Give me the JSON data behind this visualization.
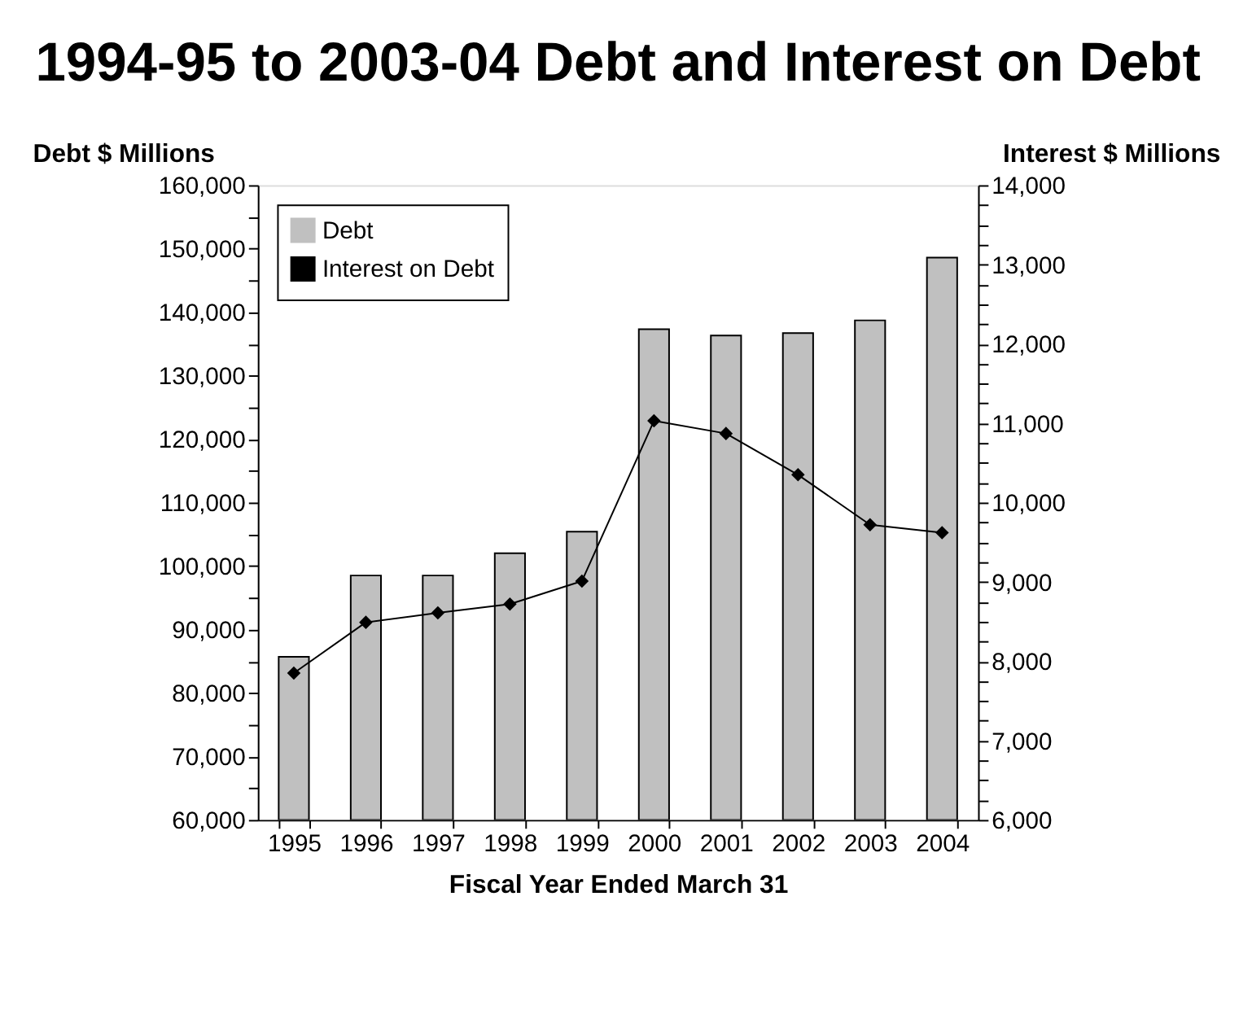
{
  "chart_data": {
    "type": "bar",
    "title": "1994-95 to 2003-04 Debt and Interest on Debt",
    "ylabel": "Debt $ Millions",
    "y2label": "Interest $ Millions",
    "xlabel": "Fiscal Year Ended March 31",
    "categories": [
      "1995",
      "1996",
      "1997",
      "1998",
      "1999",
      "2000",
      "2001",
      "2002",
      "2003",
      "2004"
    ],
    "series": [
      {
        "name": "Debt",
        "color": "#c0c0c0",
        "values": [
          85700,
          98500,
          98500,
          102000,
          105400,
          137300,
          136300,
          136700,
          138700,
          148600
        ]
      },
      {
        "name": "Interest on Debt",
        "type": "line",
        "axis": "y2",
        "color": "#000000",
        "marker": "diamond",
        "values": [
          7850,
          8490,
          8610,
          8720,
          9010,
          11030,
          10870,
          10350,
          9720,
          9620
        ]
      }
    ],
    "ylim": [
      60000,
      160000
    ],
    "yticks": [
      {
        "value": 60000,
        "label": "60,000"
      },
      {
        "value": 65000,
        "label": null
      },
      {
        "value": 70000,
        "label": "70,000"
      },
      {
        "value": 75000,
        "label": null
      },
      {
        "value": 80000,
        "label": "80,000"
      },
      {
        "value": 85000,
        "label": null
      },
      {
        "value": 90000,
        "label": "90,000"
      },
      {
        "value": 95000,
        "label": null
      },
      {
        "value": 100000,
        "label": "100,000"
      },
      {
        "value": 105000,
        "label": null
      },
      {
        "value": 110000,
        "label": "110,000"
      },
      {
        "value": 115000,
        "label": null
      },
      {
        "value": 120000,
        "label": "120,000"
      },
      {
        "value": 125000,
        "label": null
      },
      {
        "value": 130000,
        "label": "130,000"
      },
      {
        "value": 135000,
        "label": null
      },
      {
        "value": 140000,
        "label": "140,000"
      },
      {
        "value": 145000,
        "label": null
      },
      {
        "value": 150000,
        "label": "150,000"
      },
      {
        "value": 155000,
        "label": null
      },
      {
        "value": 160000,
        "label": "160,000"
      }
    ],
    "y2lim": [
      6000,
      14000
    ],
    "y2ticks": [
      {
        "value": 6000,
        "label": "6,000"
      },
      {
        "value": 6250,
        "label": null
      },
      {
        "value": 6500,
        "label": null
      },
      {
        "value": 6750,
        "label": null
      },
      {
        "value": 7000,
        "label": "7,000"
      },
      {
        "value": 7250,
        "label": null
      },
      {
        "value": 7500,
        "label": null
      },
      {
        "value": 7750,
        "label": null
      },
      {
        "value": 8000,
        "label": "8,000"
      },
      {
        "value": 8250,
        "label": null
      },
      {
        "value": 8500,
        "label": null
      },
      {
        "value": 8750,
        "label": null
      },
      {
        "value": 9000,
        "label": "9,000"
      },
      {
        "value": 9250,
        "label": null
      },
      {
        "value": 9500,
        "label": null
      },
      {
        "value": 9750,
        "label": null
      },
      {
        "value": 10000,
        "label": "10,000"
      },
      {
        "value": 10250,
        "label": null
      },
      {
        "value": 10500,
        "label": null
      },
      {
        "value": 10750,
        "label": null
      },
      {
        "value": 11000,
        "label": "11,000"
      },
      {
        "value": 11250,
        "label": null
      },
      {
        "value": 11500,
        "label": null
      },
      {
        "value": 11750,
        "label": null
      },
      {
        "value": 12000,
        "label": "12,000"
      },
      {
        "value": 12250,
        "label": null
      },
      {
        "value": 12500,
        "label": null
      },
      {
        "value": 12750,
        "label": null
      },
      {
        "value": 13000,
        "label": "13,000"
      },
      {
        "value": 13250,
        "label": null
      },
      {
        "value": 13500,
        "label": null
      },
      {
        "value": 13750,
        "label": null
      },
      {
        "value": 14000,
        "label": "14,000"
      }
    ],
    "grid": false,
    "legend": "top left",
    "line_style": "solid"
  }
}
